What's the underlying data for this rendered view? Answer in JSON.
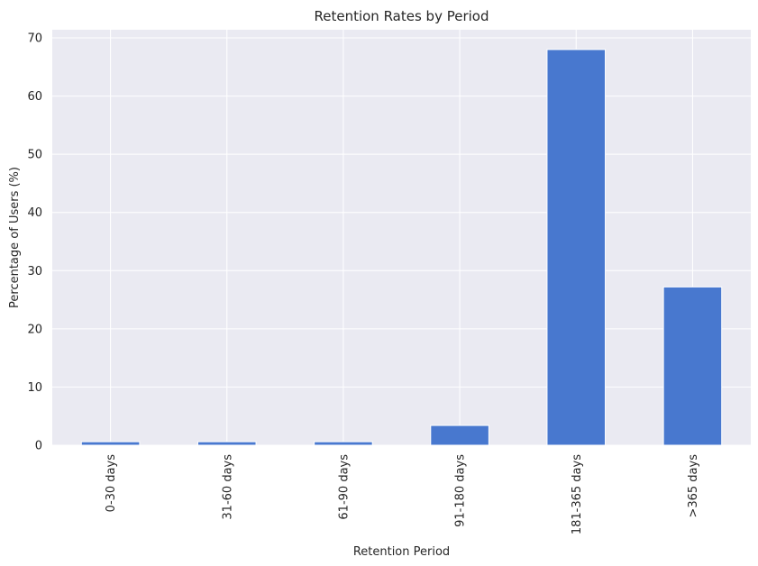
{
  "chart_data": {
    "type": "bar",
    "title": "Retention Rates by Period",
    "xlabel": "Retention Period",
    "ylabel": "Percentage of Users (%)",
    "categories": [
      "0-30 days",
      "31-60 days",
      "61-90 days",
      "91-180 days",
      "181-365 days",
      ">365 days"
    ],
    "values": [
      0.6,
      0.6,
      0.6,
      3.4,
      68.0,
      27.2
    ],
    "ylim": [
      0,
      71.4
    ],
    "yticks": [
      0,
      10,
      20,
      30,
      40,
      50,
      60,
      70
    ],
    "grid": true,
    "bar_color": "#4878cf",
    "background_color": "#eaeaf2"
  }
}
